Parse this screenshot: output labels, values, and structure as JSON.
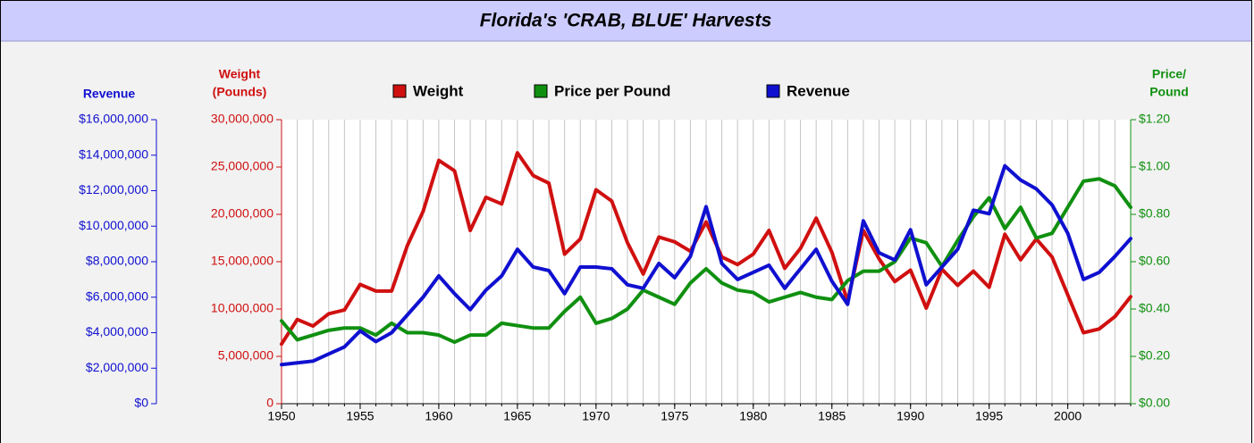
{
  "chart_data": {
    "type": "line",
    "title": "Florida's 'CRAB, BLUE' Harvests",
    "y_label": [
      "Weight",
      "(Pounds)"
    ],
    "y2_label": [
      "Price/",
      "Pound"
    ],
    "y3_label": [
      "Revenue"
    ],
    "x": [
      1950,
      1951,
      1952,
      1953,
      1954,
      1955,
      1956,
      1957,
      1958,
      1959,
      1960,
      1961,
      1962,
      1963,
      1964,
      1965,
      1966,
      1967,
      1968,
      1969,
      1970,
      1971,
      1972,
      1973,
      1974,
      1975,
      1976,
      1977,
      1978,
      1979,
      1980,
      1981,
      1982,
      1983,
      1984,
      1985,
      1986,
      1987,
      1988,
      1989,
      1990,
      1991,
      1992,
      1993,
      1994,
      1995,
      1996,
      1997,
      1998,
      1999,
      2000,
      2001,
      2002,
      2003,
      2004
    ],
    "xlim": [
      1950,
      2004
    ],
    "xticks": [
      1950,
      1955,
      1960,
      1965,
      1970,
      1975,
      1980,
      1985,
      1990,
      1995,
      2000
    ],
    "ylim": [
      0,
      30000000
    ],
    "yticks": [
      0,
      {
        "value": 5000000,
        "label": "5,000,000"
      },
      {
        "value": 10000000,
        "label": "10,000,000"
      },
      {
        "value": 15000000,
        "label": "15,000,000"
      },
      {
        "value": 20000000,
        "label": "20,000,000"
      },
      {
        "value": 25000000,
        "label": "25,000,000"
      },
      {
        "value": 30000000,
        "label": "30,000,000"
      }
    ],
    "y2lim": [
      0,
      1.2
    ],
    "y2ticks": [
      {
        "value": 0,
        "label": "$0.00"
      },
      {
        "value": 0.2,
        "label": "$0.20"
      },
      {
        "value": 0.4,
        "label": "$0.40"
      },
      {
        "value": 0.6,
        "label": "$0.60"
      },
      {
        "value": 0.8,
        "label": "$0.80"
      },
      {
        "value": 1.0,
        "label": "$1.00"
      },
      {
        "value": 1.2,
        "label": "$1.20"
      }
    ],
    "y3lim": [
      0,
      16000000
    ],
    "y3ticks": [
      {
        "value": 0,
        "label": "$0"
      },
      {
        "value": 2000000,
        "label": "$2,000,000"
      },
      {
        "value": 4000000,
        "label": "$4,000,000"
      },
      {
        "value": 6000000,
        "label": "$6,000,000"
      },
      {
        "value": 8000000,
        "label": "$8,000,000"
      },
      {
        "value": 10000000,
        "label": "$10,000,000"
      },
      {
        "value": 12000000,
        "label": "$12,000,000"
      },
      {
        "value": 14000000,
        "label": "$14,000,000"
      },
      {
        "value": 16000000,
        "label": "$16,000,000"
      }
    ],
    "grid": true,
    "legend": "top",
    "series": [
      {
        "name": "Weight",
        "color": "#d01010",
        "axis": "y",
        "values": [
          6300000,
          8900000,
          8200000,
          9500000,
          9900000,
          12600000,
          11900000,
          11900000,
          16700000,
          20300000,
          25700000,
          24600000,
          18300000,
          21800000,
          21100000,
          26500000,
          24100000,
          23300000,
          15800000,
          17400000,
          22600000,
          21400000,
          17000000,
          13700000,
          17600000,
          17100000,
          16100000,
          19200000,
          15500000,
          14700000,
          15800000,
          18300000,
          14300000,
          16400000,
          19600000,
          16000000,
          10800000,
          18300000,
          15300000,
          12900000,
          14100000,
          10100000,
          14200000,
          12500000,
          14000000,
          12300000,
          17900000,
          15200000,
          17400000,
          15500000,
          11500000,
          7500000,
          7900000,
          9200000,
          11300000
        ]
      },
      {
        "name": "Price per Pound",
        "color": "#109010",
        "axis": "y2",
        "values": [
          0.35,
          0.27,
          0.29,
          0.31,
          0.32,
          0.32,
          0.29,
          0.34,
          0.3,
          0.3,
          0.29,
          0.26,
          0.29,
          0.29,
          0.34,
          0.33,
          0.32,
          0.32,
          0.39,
          0.45,
          0.34,
          0.36,
          0.4,
          0.48,
          0.45,
          0.42,
          0.51,
          0.57,
          0.51,
          0.48,
          0.47,
          0.43,
          0.45,
          0.47,
          0.45,
          0.44,
          0.52,
          0.56,
          0.56,
          0.6,
          0.7,
          0.68,
          0.58,
          0.69,
          0.79,
          0.87,
          0.74,
          0.83,
          0.7,
          0.72,
          0.83,
          0.94,
          0.95,
          0.92,
          0.83
        ]
      },
      {
        "name": "Revenue",
        "color": "#1010d0",
        "axis": "y3",
        "values": [
          2200000,
          2300000,
          2400000,
          2800000,
          3200000,
          4100000,
          3500000,
          4000000,
          5000000,
          6000000,
          7200000,
          6200000,
          5300000,
          6400000,
          7200000,
          8700000,
          7700000,
          7500000,
          6200000,
          7700000,
          7700000,
          7600000,
          6700000,
          6500000,
          7900000,
          7100000,
          8300000,
          11100000,
          7900000,
          7000000,
          7400000,
          7800000,
          6500000,
          7600000,
          8700000,
          6900000,
          5600000,
          10300000,
          8500000,
          8100000,
          9800000,
          6700000,
          7700000,
          8700000,
          10900000,
          10700000,
          13400000,
          12600000,
          12100000,
          11200000,
          9600000,
          7000000,
          7400000,
          8300000,
          9300000
        ]
      }
    ]
  }
}
